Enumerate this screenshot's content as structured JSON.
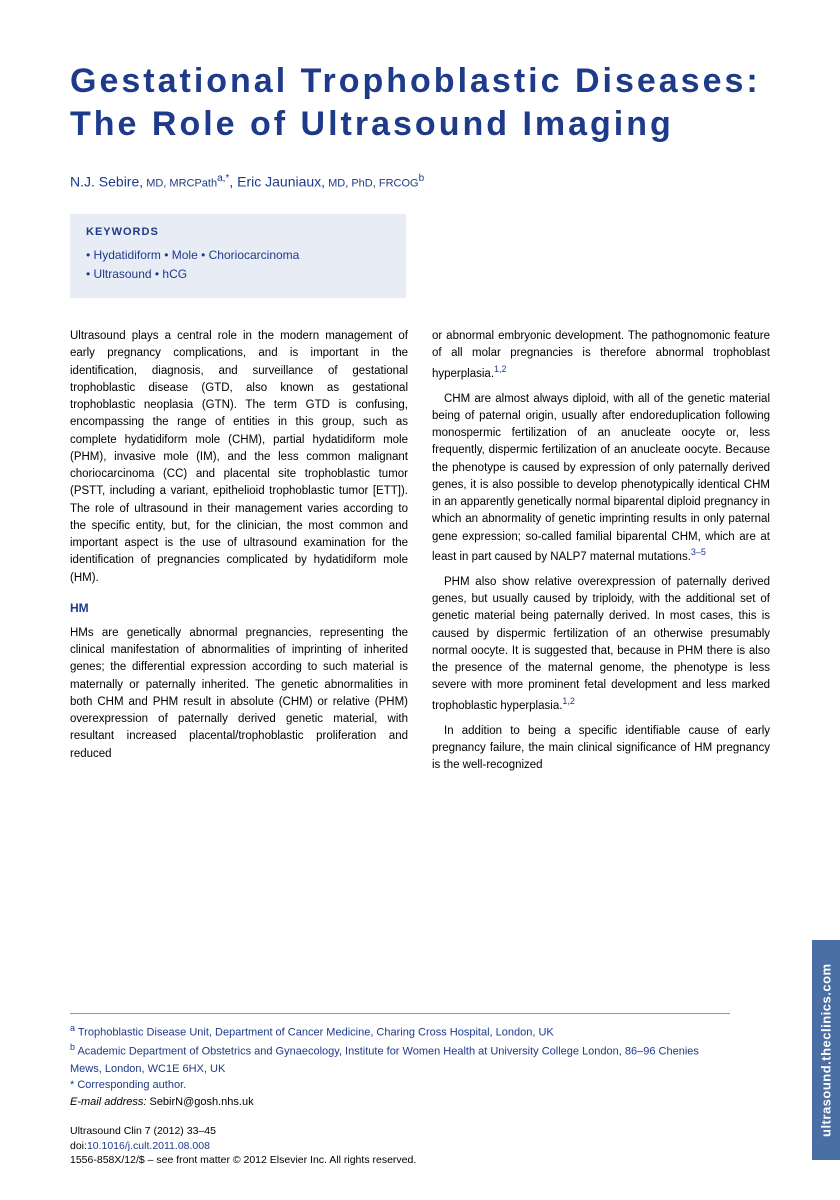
{
  "title": "Gestational Trophoblastic Diseases: The Role of Ultrasound Imaging",
  "authors": {
    "a1_name": "N.J. Sebire,",
    "a1_cred": " MD, MRCPath",
    "a1_sup": "a,*",
    "sep": ", ",
    "a2_name": "Eric Jauniaux,",
    "a2_cred": " MD, PhD, FRCOG",
    "a2_sup": "b"
  },
  "keywords": {
    "label": "KEYWORDS",
    "line1": "• Hydatidiform • Mole • Choriocarcinoma",
    "line2": "• Ultrasound • hCG"
  },
  "left_col": {
    "p1": "Ultrasound plays a central role in the modern management of early pregnancy complications, and is important in the identification, diagnosis, and surveillance of gestational trophoblastic disease (GTD, also known as gestational trophoblastic neoplasia (GTN). The term GTD is confusing, encompassing the range of entities in this group, such as complete hydatidiform mole (CHM), partial hydatidiform mole (PHM), invasive mole (IM), and the less common malignant choriocarcinoma (CC) and placental site trophoblastic tumor (PSTT, including a variant, epithelioid trophoblastic tumor [ETT]). The role of ultrasound in their management varies according to the specific entity, but, for the clinician, the most common and important aspect is the use of ultrasound examination for the identification of pregnancies complicated by hydatidiform mole (HM).",
    "head": "HM",
    "p2": "HMs are genetically abnormal pregnancies, representing the clinical manifestation of abnormalities of imprinting of inherited genes; the differential expression according to such material is maternally or paternally inherited. The genetic abnormalities in both CHM and PHM result in absolute (CHM) or relative (PHM) overexpression of paternally derived genetic material, with resultant increased placental/trophoblastic proliferation and reduced"
  },
  "right_col": {
    "p1a": "or abnormal embryonic development. The pathognomonic feature of all molar pregnancies is therefore abnormal trophoblast hyperplasia.",
    "p1ref": "1,2",
    "p2a": "CHM are almost always diploid, with all of the genetic material being of paternal origin, usually after endoreduplication following monospermic fertilization of an anucleate oocyte or, less frequently, dispermic fertilization of an anucleate oocyte. Because the phenotype is caused by expression of only paternally derived genes, it is also possible to develop phenotypically identical CHM in an apparently genetically normal biparental diploid pregnancy in which an abnormality of genetic imprinting results in only paternal gene expression; so-called familial biparental CHM, which are at least in part caused by NALP7 maternal mutations.",
    "p2ref": "3–5",
    "p3a": "PHM also show relative overexpression of paternally derived genes, but usually caused by triploidy, with the additional set of genetic material being paternally derived. In most cases, this is caused by dispermic fertilization of an otherwise presumably normal oocyte. It is suggested that, because in PHM there is also the presence of the maternal genome, the phenotype is less severe with more prominent fetal development and less marked trophoblastic hyperplasia.",
    "p3ref": "1,2",
    "p4": "In addition to being a specific identifiable cause of early pregnancy failure, the main clinical significance of HM pregnancy is the well-recognized"
  },
  "affiliations": {
    "a": "Trophoblastic Disease Unit, Department of Cancer Medicine, Charing Cross Hospital, London, UK",
    "b": "Academic Department of Obstetrics and Gynaecology, Institute for Women Health at University College London, 86–96 Chenies Mews, London, WC1E 6HX, UK",
    "corr": "* Corresponding author.",
    "email_label": "E-mail address:",
    "email": " SebirN@gosh.nhs.uk"
  },
  "footer": {
    "journal": "Ultrasound Clin 7 (2012) 33–45",
    "doi_label": "doi:",
    "doi": "10.1016/j.cult.2011.08.008",
    "copyright": "1556-858X/12/$ – see front matter © 2012 Elsevier Inc. All rights reserved."
  },
  "sidetab": "ultrasound.theclinics.com",
  "colors": {
    "primary": "#1e3a8a",
    "box_bg": "#e8ecf4",
    "tab_bg": "#4a6fa5"
  }
}
